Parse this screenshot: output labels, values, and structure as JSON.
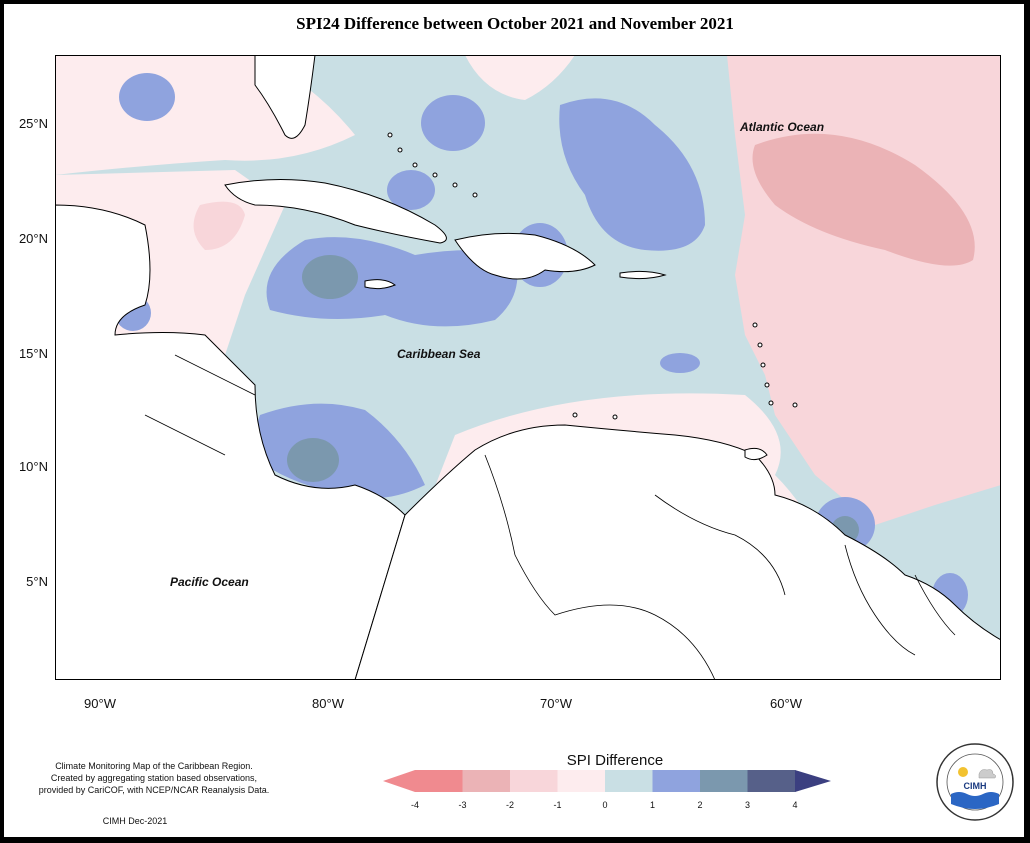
{
  "title": "SPI24 Difference between October 2021 and November 2021",
  "labels": {
    "atlantic": "Atlantic Ocean",
    "caribbean": "Caribbean Sea",
    "pacific": "Pacific Ocean"
  },
  "lat_ticks": [
    "25°N",
    "20°N",
    "15°N",
    "10°N",
    "5°N"
  ],
  "lon_ticks": [
    "90°W",
    "80°W",
    "70°W",
    "60°W"
  ],
  "credit": {
    "line1": "Climate Monitoring Map of the Caribbean Region.",
    "line2": "Created by aggregating station based observations,",
    "line3": "provided by CariCOF, with NCEP/NCAR Reanalysis Data.",
    "date": "CIMH Dec-2021"
  },
  "legend": {
    "title": "SPI Difference",
    "ticks": [
      "-4",
      "-3",
      "-2",
      "-1",
      "0",
      "1",
      "2",
      "3",
      "4"
    ],
    "colors": [
      "#f08a8f",
      "#ebb3b6",
      "#f8d6da",
      "#fdecee",
      "#c9dfe4",
      "#8fa3de",
      "#7b98ae",
      "#566089",
      "#3b3f80"
    ]
  },
  "logo": {
    "name": "CIMH"
  }
}
